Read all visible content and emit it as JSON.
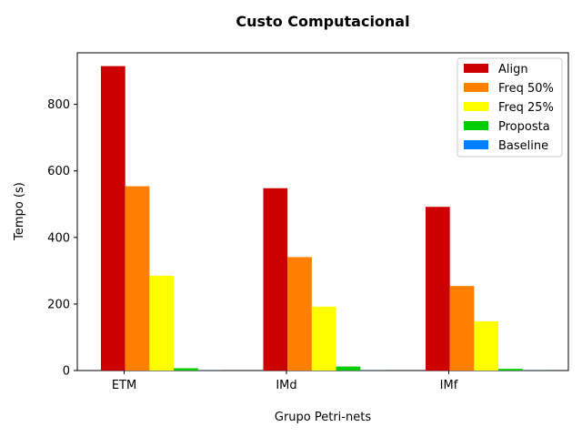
{
  "chart_data": {
    "type": "bar",
    "title": "Custo Computacional",
    "xlabel": "Grupo Petri-nets",
    "ylabel": "Tempo (s)",
    "categories": [
      "ETM",
      "IMd",
      "IMf"
    ],
    "ylim": [
      0,
      955
    ],
    "yticks": [
      0,
      200,
      400,
      600,
      800
    ],
    "legend_position": "top-right",
    "grid": false,
    "series": [
      {
        "name": "Align",
        "color": "#cc0000",
        "values": [
          915,
          548,
          492
        ]
      },
      {
        "name": "Freq 50%",
        "color": "#ff8000",
        "values": [
          554,
          341,
          254
        ]
      },
      {
        "name": "Freq 25%",
        "color": "#ffff00",
        "values": [
          285,
          192,
          148
        ]
      },
      {
        "name": "Proposta",
        "color": "#00cc00",
        "values": [
          7,
          12,
          5
        ]
      },
      {
        "name": "Baseline",
        "color": "#0080ff",
        "values": [
          0.4,
          0.4,
          0.3
        ]
      }
    ]
  }
}
